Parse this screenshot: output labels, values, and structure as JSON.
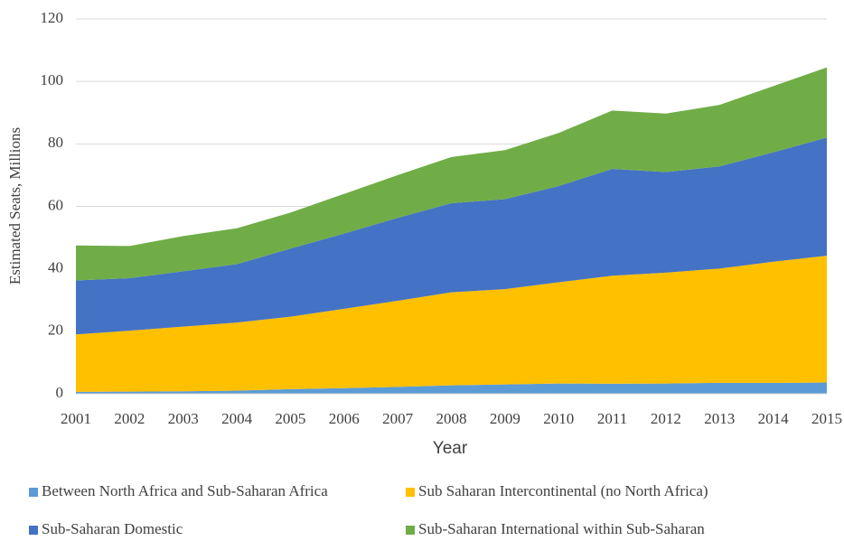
{
  "chart_data": {
    "type": "stacked-area",
    "x_label": "Year",
    "y_label": "Estimated Seats, Millions",
    "x": [
      2001,
      2002,
      2003,
      2004,
      2005,
      2006,
      2007,
      2008,
      2009,
      2010,
      2011,
      2012,
      2013,
      2014,
      2015
    ],
    "xlim": [
      2001,
      2015
    ],
    "xticks": [
      2001,
      2002,
      2003,
      2004,
      2005,
      2006,
      2007,
      2008,
      2009,
      2010,
      2011,
      2012,
      2013,
      2014,
      2015
    ],
    "ylim": [
      0,
      120
    ],
    "yticks": [
      0,
      20,
      40,
      60,
      80,
      100,
      120
    ],
    "grid": true,
    "series": [
      {
        "name": "Between North Africa and Sub-Saharan Africa",
        "color": "#5b9bd5",
        "values": [
          0.6,
          0.7,
          0.8,
          1.0,
          1.5,
          1.8,
          2.2,
          2.7,
          3.0,
          3.3,
          3.2,
          3.3,
          3.5,
          3.5,
          3.6
        ]
      },
      {
        "name": "Sub Saharan Intercontinental (no North Africa)",
        "color": "#ffc000",
        "values": [
          18.4,
          19.5,
          20.7,
          21.8,
          23.2,
          25.4,
          27.6,
          29.8,
          30.5,
          32.4,
          34.6,
          35.5,
          36.6,
          38.8,
          40.6
        ]
      },
      {
        "name": "Sub-Saharan Domestic",
        "color": "#4472c4",
        "values": [
          17.3,
          16.8,
          17.7,
          18.7,
          21.8,
          24.1,
          26.5,
          28.5,
          28.8,
          30.8,
          34.2,
          32.2,
          32.7,
          35.0,
          37.8
        ]
      },
      {
        "name": "Sub-Saharan International within Sub-Saharan",
        "color": "#70ad47",
        "values": [
          11.2,
          10.3,
          11.3,
          11.5,
          11.5,
          12.7,
          13.7,
          14.8,
          15.7,
          17.0,
          18.7,
          18.7,
          19.7,
          21.2,
          22.5
        ]
      }
    ]
  }
}
